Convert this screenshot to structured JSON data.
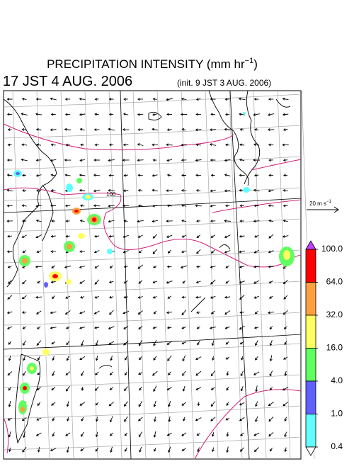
{
  "header": {
    "title": "PRECIPITATION INTENSITY (mm hr",
    "title_sup": "−1",
    "title_end": ")",
    "valid_time": "17 JST 4 AUG. 2006",
    "init_time": "(init. 9 JST 3 AUG. 2006)"
  },
  "vector_reference": {
    "label": "20 m s",
    "label_sup": "−1"
  },
  "contour_label": "100",
  "colorbar": {
    "levels": [
      {
        "value": 100,
        "label": "100.0"
      },
      {
        "value": 64,
        "label": "64.0"
      },
      {
        "value": 32,
        "label": "32.0"
      },
      {
        "value": 16,
        "label": "16.0"
      },
      {
        "value": 4,
        "label": "4.0"
      },
      {
        "value": 1,
        "label": "1.0"
      },
      {
        "value": 0.4,
        "label": "0.4"
      }
    ],
    "colors": [
      "#ff0000",
      "#ffa040",
      "#ffff60",
      "#60ff60",
      "#6060ff",
      "#60ffff"
    ],
    "over_color": "#c040ff",
    "under_color": "#ffffff"
  }
}
